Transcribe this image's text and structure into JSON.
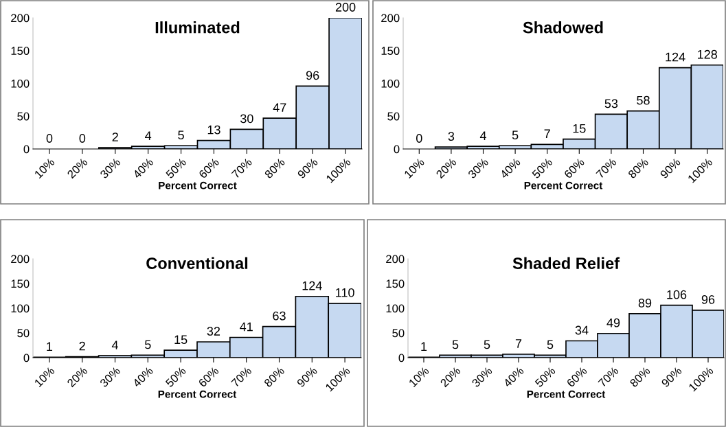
{
  "chart_data": [
    {
      "type": "bar",
      "title": "Illuminated",
      "xlabel": "Percent Correct",
      "categories": [
        "10%",
        "20%",
        "30%",
        "40%",
        "50%",
        "60%",
        "70%",
        "80%",
        "90%",
        "100%"
      ],
      "values": [
        0,
        0,
        2,
        4,
        5,
        13,
        30,
        47,
        96,
        200
      ],
      "color": "#c6d9f1",
      "ylim": [
        0,
        200
      ],
      "yticks": [
        0,
        50,
        100,
        150,
        200
      ],
      "data_labels": true,
      "grid": false
    },
    {
      "type": "bar",
      "title": "Shadowed",
      "xlabel": "Percent Correct",
      "categories": [
        "10%",
        "20%",
        "30%",
        "40%",
        "50%",
        "60%",
        "70%",
        "80%",
        "90%",
        "100%"
      ],
      "values": [
        0,
        3,
        4,
        5,
        7,
        15,
        53,
        58,
        124,
        128
      ],
      "color": "#c6d9f1",
      "ylim": [
        0,
        200
      ],
      "yticks": [
        0,
        50,
        100,
        150,
        200
      ],
      "data_labels": true,
      "grid": false
    },
    {
      "type": "bar",
      "title": "Conventional",
      "xlabel": "Percent Correct",
      "categories": [
        "10%",
        "20%",
        "30%",
        "40%",
        "50%",
        "60%",
        "70%",
        "80%",
        "90%",
        "100%"
      ],
      "values": [
        1,
        2,
        4,
        5,
        15,
        32,
        41,
        63,
        124,
        110
      ],
      "color": "#c6d9f1",
      "ylim": [
        0,
        200
      ],
      "yticks": [
        0,
        50,
        100,
        150,
        200
      ],
      "data_labels": true,
      "grid": false
    },
    {
      "type": "bar",
      "title": "Shaded Relief",
      "xlabel": "Percent Correct",
      "categories": [
        "10%",
        "20%",
        "30%",
        "40%",
        "50%",
        "60%",
        "70%",
        "80%",
        "90%",
        "100%"
      ],
      "values": [
        1,
        5,
        5,
        7,
        5,
        34,
        49,
        89,
        106,
        96
      ],
      "color": "#c6d9f1",
      "ylim": [
        0,
        200
      ],
      "yticks": [
        0,
        50,
        100,
        150,
        200
      ],
      "data_labels": true,
      "grid": false
    }
  ]
}
